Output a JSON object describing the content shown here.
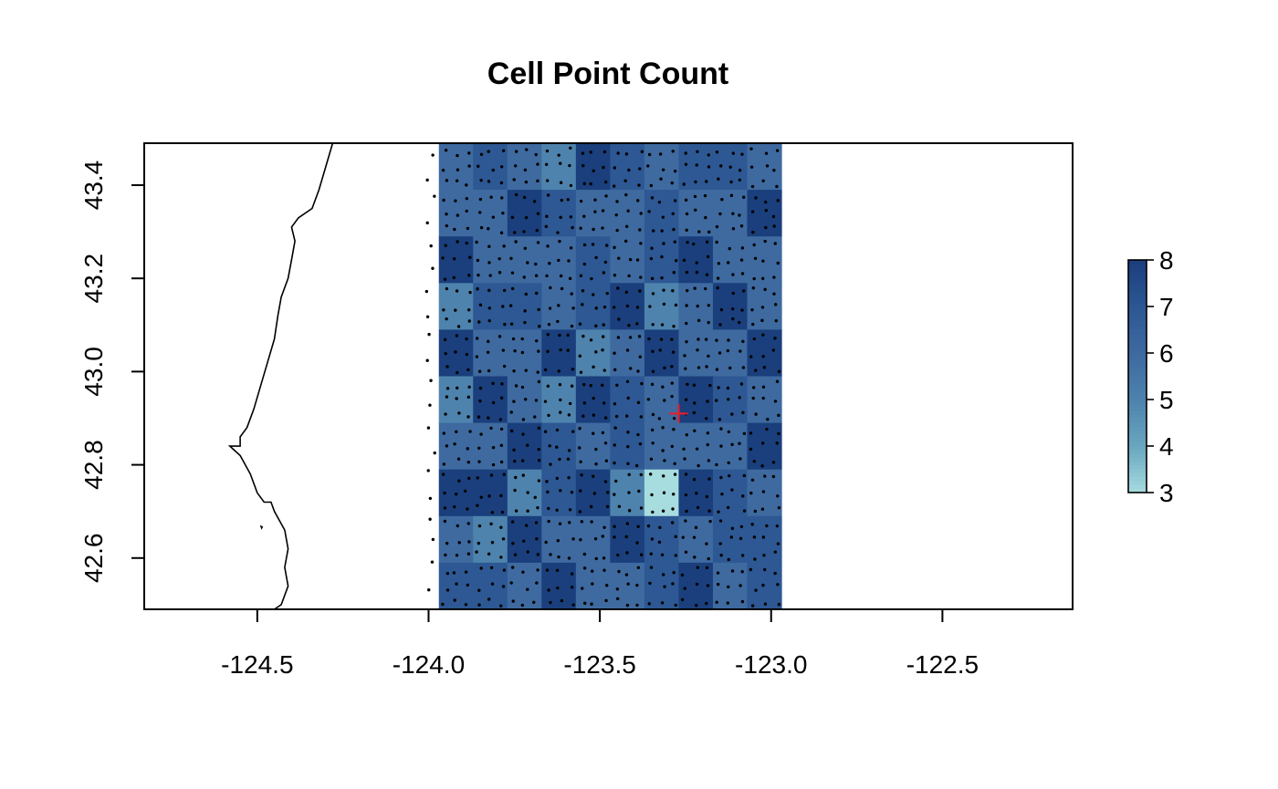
{
  "chart_data": {
    "type": "heatmap",
    "title": "Cell Point Count",
    "xlabel": "",
    "ylabel": "",
    "xlim": [
      -124.83,
      -122.12
    ],
    "ylim": [
      42.49,
      43.49
    ],
    "x_ticks": [
      -124.5,
      -124.0,
      -123.5,
      -123.0,
      -122.5
    ],
    "x_tick_labels": [
      "-124.5",
      "-124.0",
      "-123.5",
      "-123.0",
      "-122.5"
    ],
    "y_ticks": [
      42.6,
      42.8,
      43.0,
      43.2,
      43.4
    ],
    "y_tick_labels": [
      "42.6",
      "42.8",
      "43.0",
      "43.2",
      "43.4"
    ],
    "grid": {
      "x_start": -123.97,
      "x_end": -122.97,
      "y_start": 42.49,
      "y_end": 43.49,
      "cols": 10,
      "rows": 10,
      "values_top_to_bottom": [
        [
          6,
          7,
          6,
          5,
          8,
          7,
          6,
          7,
          7,
          6
        ],
        [
          6,
          6,
          8,
          7,
          6,
          6,
          7,
          6,
          6,
          8
        ],
        [
          8,
          6,
          6,
          6,
          7,
          6,
          7,
          8,
          6,
          6
        ],
        [
          5,
          7,
          7,
          6,
          7,
          8,
          5,
          6,
          8,
          6
        ],
        [
          8,
          6,
          6,
          8,
          5,
          6,
          8,
          6,
          6,
          8
        ],
        [
          5,
          8,
          6,
          5,
          8,
          7,
          6,
          8,
          7,
          6
        ],
        [
          6,
          6,
          8,
          7,
          6,
          7,
          6,
          6,
          6,
          8
        ],
        [
          8,
          8,
          5,
          7,
          8,
          5,
          3,
          8,
          7,
          6
        ],
        [
          6,
          5,
          8,
          6,
          6,
          8,
          7,
          6,
          7,
          7
        ],
        [
          7,
          7,
          6,
          8,
          6,
          6,
          7,
          8,
          6,
          7
        ]
      ]
    },
    "legend": {
      "min": 3,
      "max": 8,
      "tick_labels": [
        "3",
        "4",
        "5",
        "6",
        "7",
        "8"
      ],
      "placement": "right"
    },
    "color_scale": [
      "#a8dde0",
      "#6ba7bf",
      "#4e83ad",
      "#3e6aa0",
      "#2d5893",
      "#1a3f7c"
    ],
    "marker": {
      "x": -123.27,
      "y": 42.91,
      "symbol": "+",
      "color": "#e3202f"
    },
    "coastline_color": "#000000",
    "point_color": "#000000"
  }
}
